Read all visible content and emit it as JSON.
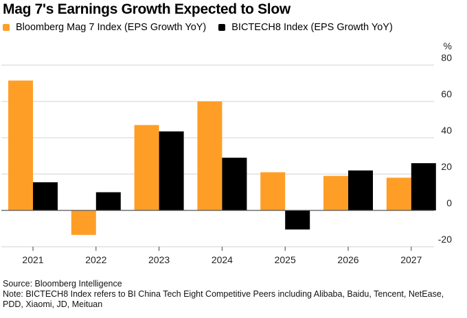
{
  "chart_data": {
    "type": "bar",
    "title": "Mag 7's Earnings Growth Expected to Slow",
    "categories": [
      "2021",
      "2022",
      "2023",
      "2024",
      "2025",
      "2026",
      "2027"
    ],
    "series": [
      {
        "name": "Bloomberg Mag 7 Index (EPS Growth YoY)",
        "color": "#FF9E27",
        "values": [
          71.5,
          -13.5,
          47,
          60,
          21,
          19,
          18
        ]
      },
      {
        "name": "BICTECH8 Index (EPS Growth YoY)",
        "color": "#000000",
        "values": [
          15.5,
          10,
          43.5,
          29,
          -10.5,
          22,
          26
        ]
      }
    ],
    "yaxis": {
      "unit_label": "%",
      "ticks": [
        "80",
        "60",
        "40",
        "20",
        "0",
        "-20"
      ],
      "tick_values": [
        80,
        60,
        40,
        20,
        0,
        -20
      ],
      "position": "right"
    },
    "ylim": [
      -20,
      80
    ],
    "xlabel": "",
    "ylabel": "%",
    "grid": true,
    "legend_position": "top-left"
  },
  "footer": {
    "source": "Source: Bloomberg Intelligence",
    "note": "Note: BICTECH8 Index refers to BI China Tech Eight Competitive Peers including Alibaba, Baidu, Tencent, NetEase, PDD, Xiaomi, JD, Meituan"
  }
}
